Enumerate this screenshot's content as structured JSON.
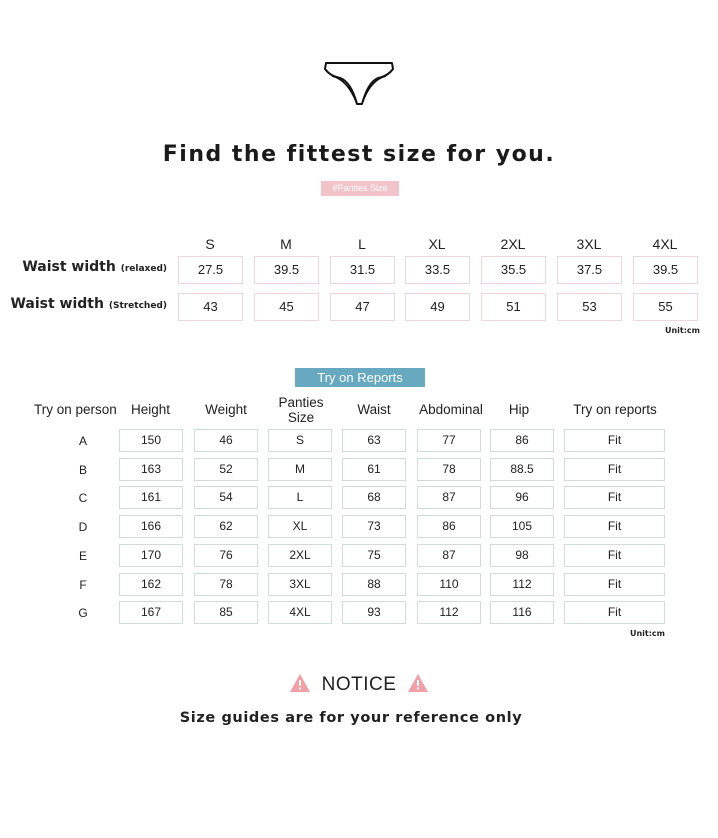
{
  "header": {
    "title": "Find the fittest size for you.",
    "tag": "#Panties Size",
    "icon": "panties-icon"
  },
  "size_chart": {
    "sizes": [
      "S",
      "M",
      "L",
      "XL",
      "2XL",
      "3XL",
      "4XL"
    ],
    "rows": [
      {
        "label": "Waist width",
        "qualifier": "(relaxed)",
        "values": [
          "27.5",
          "39.5",
          "31.5",
          "33.5",
          "35.5",
          "37.5",
          "39.5"
        ]
      },
      {
        "label": "Waist width",
        "qualifier": "(Stretched)",
        "values": [
          "43",
          "45",
          "47",
          "49",
          "51",
          "53",
          "55"
        ]
      }
    ],
    "unit": "Unit:cm"
  },
  "reports": {
    "banner": "Try on Reports",
    "headers": [
      "Try on person",
      "Height",
      "Weight",
      "Panties Size",
      "Waist",
      "Abdominal",
      "Hip",
      "Try on reports"
    ],
    "rows": [
      [
        "A",
        "150",
        "46",
        "S",
        "63",
        "77",
        "86",
        "Fit"
      ],
      [
        "B",
        "163",
        "52",
        "M",
        "61",
        "78",
        "88.5",
        "Fit"
      ],
      [
        "C",
        "161",
        "54",
        "L",
        "68",
        "87",
        "96",
        "Fit"
      ],
      [
        "D",
        "166",
        "62",
        "XL",
        "73",
        "86",
        "105",
        "Fit"
      ],
      [
        "E",
        "170",
        "76",
        "2XL",
        "75",
        "87",
        "98",
        "Fit"
      ],
      [
        "F",
        "162",
        "78",
        "3XL",
        "88",
        "110",
        "112",
        "Fit"
      ],
      [
        "G",
        "167",
        "85",
        "4XL",
        "93",
        "112",
        "116",
        "Fit"
      ]
    ],
    "unit": "Unit:cm"
  },
  "notice": {
    "title": "NOTICE",
    "text": "Size guides are for your reference only",
    "icon": "warning-icon",
    "icon_color": "#f2a0a6"
  },
  "colors": {
    "tag": "#f2c4c9",
    "banner": "#66a9c1"
  }
}
